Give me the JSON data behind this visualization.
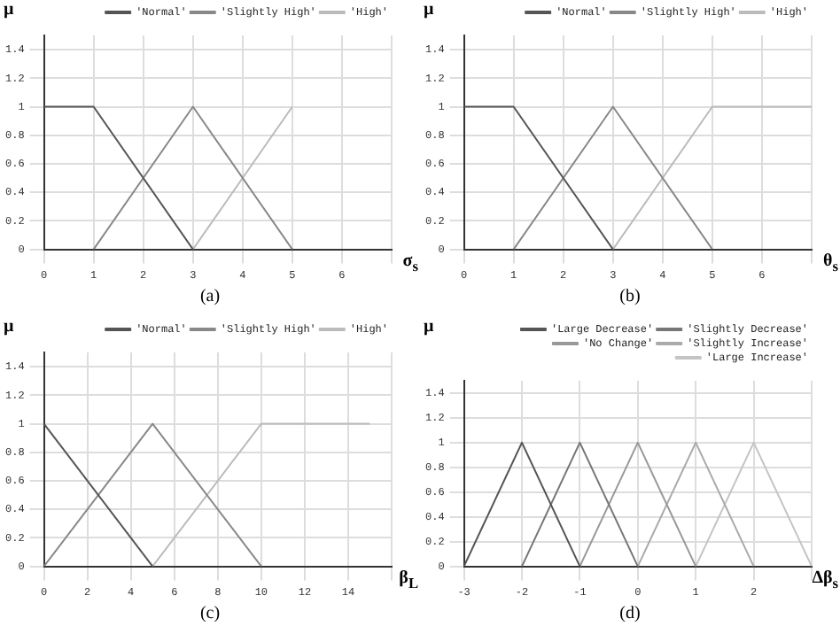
{
  "chart_data": [
    {
      "type": "line",
      "xlabel": "σ$_{s}$",
      "ylabel": "µ",
      "annotations": [
        "(a)"
      ],
      "xlim": [
        0,
        7
      ],
      "xticks": [
        0,
        1,
        2,
        3,
        4,
        5,
        6,
        {
          "value": 7,
          "label": null
        }
      ],
      "ylim": [
        0,
        1.5
      ],
      "yticks": [
        0,
        0.2,
        0.4,
        0.6,
        0.8,
        1,
        1.2,
        1.4
      ],
      "grid": true,
      "legend": "top right",
      "marker": "none",
      "series": [
        {
          "name": "'Normal'",
          "color": "#555555",
          "x": [
            0,
            1,
            3
          ],
          "values": [
            1,
            1,
            0
          ]
        },
        {
          "name": "'Slightly High'",
          "color": "#888888",
          "x": [
            1,
            3,
            5
          ],
          "values": [
            0,
            1,
            0
          ]
        },
        {
          "name": "'High'",
          "color": "#bbbbbb",
          "x": [
            3,
            5
          ],
          "values": [
            0,
            1
          ]
        }
      ]
    },
    {
      "type": "line",
      "xlabel": "θ$_{s}$",
      "ylabel": "µ",
      "annotations": [
        "(b)"
      ],
      "xlim": [
        0,
        7
      ],
      "xticks": [
        0,
        1,
        2,
        3,
        4,
        5,
        6,
        {
          "value": 7,
          "label": null
        }
      ],
      "ylim": [
        0,
        1.5
      ],
      "yticks": [
        0,
        0.2,
        0.4,
        0.6,
        0.8,
        1,
        1.2,
        1.4
      ],
      "grid": true,
      "legend": "top right",
      "marker": "none",
      "series": [
        {
          "name": "'Normal'",
          "color": "#555555",
          "x": [
            0,
            1,
            3
          ],
          "values": [
            1,
            1,
            0
          ]
        },
        {
          "name": "'Slightly High'",
          "color": "#888888",
          "x": [
            1,
            3,
            5
          ],
          "values": [
            0,
            1,
            0
          ]
        },
        {
          "name": "'High'",
          "color": "#bbbbbb",
          "x": [
            3,
            5,
            7
          ],
          "values": [
            0,
            1,
            1
          ]
        }
      ]
    },
    {
      "type": "line",
      "xlabel": "β$_{L}$",
      "ylabel": "µ",
      "annotations": [
        "(c)"
      ],
      "xlim": [
        0,
        16
      ],
      "xticks": [
        0,
        2,
        4,
        6,
        8,
        10,
        12,
        14,
        {
          "value": 16,
          "label": null
        }
      ],
      "ylim": [
        0,
        1.5
      ],
      "yticks": [
        0,
        0.2,
        0.4,
        0.6,
        0.8,
        1,
        1.2,
        1.4
      ],
      "grid": true,
      "legend": "top right",
      "marker": "none",
      "series": [
        {
          "name": "'Normal'",
          "color": "#555555",
          "x": [
            0,
            5
          ],
          "values": [
            1,
            0
          ]
        },
        {
          "name": "'Slightly High'",
          "color": "#888888",
          "x": [
            0,
            5,
            10
          ],
          "values": [
            0,
            1,
            0
          ]
        },
        {
          "name": "'High'",
          "color": "#bbbbbb",
          "x": [
            5,
            10,
            15
          ],
          "values": [
            0,
            1,
            1
          ]
        }
      ]
    },
    {
      "type": "line",
      "xlabel": "Δβ$_{s}$",
      "ylabel": "µ",
      "annotations": [
        "(d)"
      ],
      "xlim": [
        -3,
        3
      ],
      "xticks": [
        -3,
        -2,
        -1,
        0,
        1,
        2,
        {
          "value": 3,
          "label": null
        }
      ],
      "ylim": [
        0,
        1.5
      ],
      "yticks": [
        0,
        0.2,
        0.4,
        0.6,
        0.8,
        1,
        1.2,
        1.4
      ],
      "grid": true,
      "legend": "top right",
      "marker": "none",
      "series": [
        {
          "name": "'Large Decrease'",
          "color": "#555555",
          "x": [
            -3,
            -2,
            -1
          ],
          "values": [
            0,
            1,
            0
          ]
        },
        {
          "name": "'Slightly Decrease'",
          "color": "#777777",
          "x": [
            -2,
            -1,
            0
          ],
          "values": [
            0,
            1,
            0
          ]
        },
        {
          "name": "'No Change'",
          "color": "#999999",
          "x": [
            -1,
            0,
            1
          ],
          "values": [
            0,
            1,
            0
          ]
        },
        {
          "name": "'Slightly Increase'",
          "color": "#aaaaaa",
          "x": [
            0,
            1,
            2
          ],
          "values": [
            0,
            1,
            0
          ]
        },
        {
          "name": "'Large Increase'",
          "color": "#c4c4c4",
          "x": [
            1,
            2,
            3
          ],
          "values": [
            0,
            1,
            0
          ]
        }
      ]
    }
  ]
}
